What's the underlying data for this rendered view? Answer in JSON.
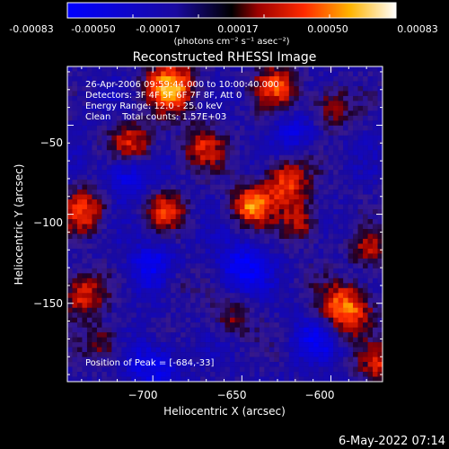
{
  "colorbar": {
    "ticks": [
      "-0.00083",
      "-0.00050",
      "-0.00017",
      "0.00017",
      "0.00050",
      "0.00083"
    ],
    "units_label": "(photons cm⁻² s⁻¹ asec⁻²)"
  },
  "plot": {
    "title": "Reconstructed RHESSI Image",
    "xlabel": "Heliocentric X (arcsec)",
    "ylabel": "Heliocentric Y (arcsec)",
    "info_lines": [
      "26-Apr-2006 09:59:44.000 to 10:00:40.000",
      "Detectors: 3F 4F 5F 6F 7F 8F, Att 0",
      "Energy Range: 12.0 - 25.0 keV",
      "Clean    Total counts: 1.57E+03"
    ],
    "peak_label": "Position of Peak = [-684,-33]"
  },
  "footer": {
    "timestamp": "6-May-2022 07:14"
  },
  "chart_data": {
    "type": "heatmap",
    "title": "Reconstructed RHESSI Image",
    "xlabel": "Heliocentric X (arcsec)",
    "ylabel": "Heliocentric Y (arcsec)",
    "xlim": [
      -748,
      -571
    ],
    "ylim": [
      -194,
      -17
    ],
    "x_ticks": [
      -700,
      -650,
      -600
    ],
    "y_ticks": [
      -50,
      -100,
      -150
    ],
    "x_tick_labels": [
      "−700",
      "−650",
      "−600"
    ],
    "y_tick_labels": [
      "−50",
      "−100",
      "−150"
    ],
    "colorbar_range": [
      -0.00083,
      0.00083
    ],
    "peak_position": [
      -684,
      -33
    ],
    "sources": [
      {
        "x": -690,
        "y": -28,
        "amp": 0.00083,
        "w": 10
      },
      {
        "x": -712,
        "y": -60,
        "amp": 0.00055,
        "w": 9
      },
      {
        "x": -630,
        "y": -28,
        "amp": 0.0006,
        "w": 9
      },
      {
        "x": -600,
        "y": -40,
        "amp": 0.00045,
        "w": 8
      },
      {
        "x": -672,
        "y": -62,
        "amp": 0.0005,
        "w": 9
      },
      {
        "x": -645,
        "y": -95,
        "amp": 0.00078,
        "w": 8
      },
      {
        "x": -625,
        "y": -82,
        "amp": 0.00065,
        "w": 9
      },
      {
        "x": -617,
        "y": -104,
        "amp": 0.0005,
        "w": 8
      },
      {
        "x": -693,
        "y": -98,
        "amp": 0.00055,
        "w": 8
      },
      {
        "x": -738,
        "y": -98,
        "amp": 0.0006,
        "w": 9
      },
      {
        "x": -740,
        "y": -145,
        "amp": 0.0006,
        "w": 9
      },
      {
        "x": -728,
        "y": -173,
        "amp": 0.0004,
        "w": 8
      },
      {
        "x": -578,
        "y": -120,
        "amp": 0.00045,
        "w": 8
      },
      {
        "x": -592,
        "y": -153,
        "amp": 0.00083,
        "w": 10
      },
      {
        "x": -573,
        "y": -185,
        "amp": 0.0005,
        "w": 8
      },
      {
        "x": -655,
        "y": -158,
        "amp": 0.00035,
        "w": 8
      },
      {
        "x": -688,
        "y": -138,
        "amp": 0.0003,
        "w": 8
      },
      {
        "x": -715,
        "y": -78,
        "amp": -0.00045,
        "w": 9
      },
      {
        "x": -650,
        "y": -130,
        "amp": -0.0005,
        "w": 10
      },
      {
        "x": -700,
        "y": -130,
        "amp": -0.00045,
        "w": 10
      },
      {
        "x": -608,
        "y": -170,
        "amp": -0.0004,
        "w": 9
      },
      {
        "x": -620,
        "y": -55,
        "amp": -0.00035,
        "w": 8
      },
      {
        "x": -700,
        "y": -185,
        "amp": -0.00045,
        "w": 10
      }
    ]
  }
}
